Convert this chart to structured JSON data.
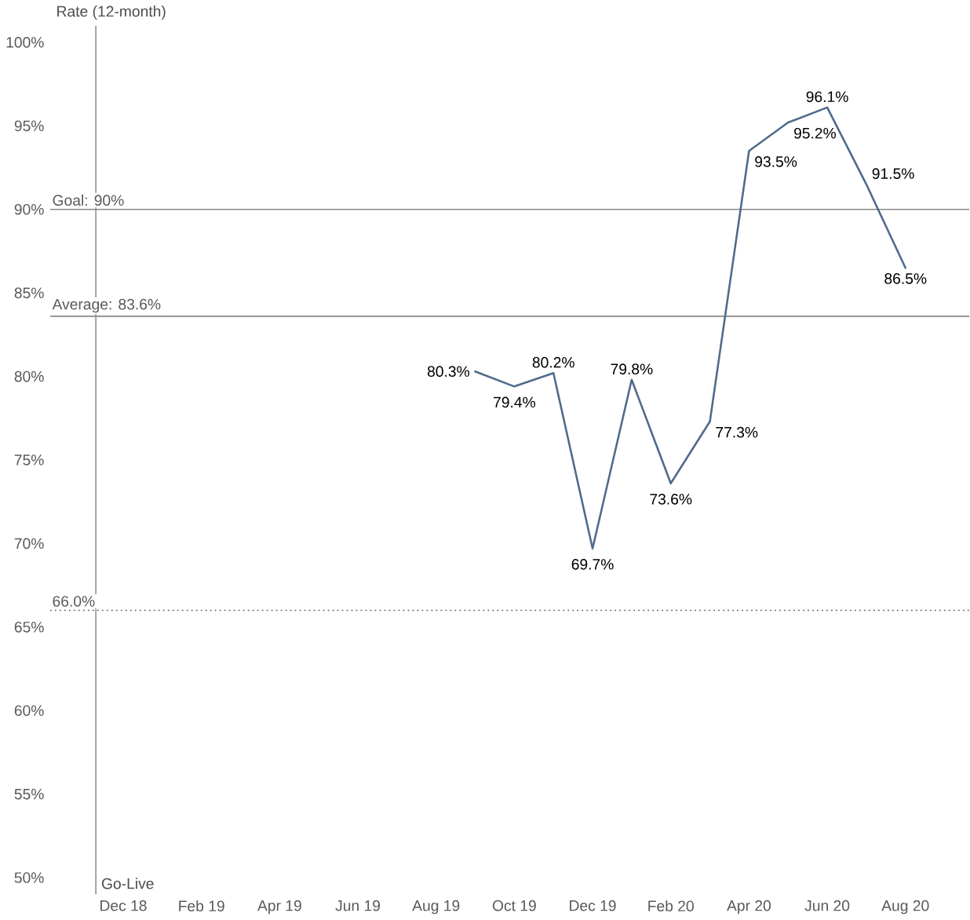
{
  "chart_data": {
    "type": "line",
    "ylabel": "Rate (12-month)",
    "x": [
      "2019-09",
      "2019-10",
      "2019-11",
      "2019-12",
      "2020-01",
      "2020-02",
      "2020-03",
      "2020-04",
      "2020-05",
      "2020-06",
      "2020-07",
      "2020-08"
    ],
    "series": [
      {
        "color": "#4e6b8c",
        "values": [
          80.3,
          79.4,
          80.2,
          69.7,
          79.8,
          73.6,
          77.3,
          93.5,
          95.2,
          96.1,
          91.5,
          86.5
        ],
        "value_labels": [
          "80.3%",
          "79.4%",
          "80.2%",
          "69.7%",
          "79.8%",
          "73.6%",
          "77.3%",
          "93.5%",
          "95.2%",
          "96.1%",
          "91.5%",
          "86.5%"
        ]
      }
    ],
    "xlim": [
      "2018-10-05",
      "2020-09-20"
    ],
    "xticks": [
      {
        "value": "2018-12",
        "label": "Dec 18"
      },
      {
        "value": "2019-02",
        "label": "Feb 19"
      },
      {
        "value": "2019-04",
        "label": "Apr 19"
      },
      {
        "value": "2019-06",
        "label": "Jun 19"
      },
      {
        "value": "2019-08",
        "label": "Aug 19"
      },
      {
        "value": "2019-10",
        "label": "Oct 19"
      },
      {
        "value": "2019-12",
        "label": "Dec 19"
      },
      {
        "value": "2020-02",
        "label": "Feb 20"
      },
      {
        "value": "2020-04",
        "label": "Apr 20"
      },
      {
        "value": "2020-06",
        "label": "Jun 20"
      },
      {
        "value": "2020-08",
        "label": "Aug 20"
      }
    ],
    "ylim": [
      49,
      101
    ],
    "yticks": [
      {
        "value": 50,
        "label": "50%"
      },
      {
        "value": 55,
        "label": "55%"
      },
      {
        "value": 60,
        "label": "60%"
      },
      {
        "value": 65,
        "label": "65%"
      },
      {
        "value": 70,
        "label": "70%"
      },
      {
        "value": 75,
        "label": "75%"
      },
      {
        "value": 80,
        "label": "80%"
      },
      {
        "value": 85,
        "label": "85%"
      },
      {
        "value": 90,
        "label": "90%"
      },
      {
        "value": 95,
        "label": "95%"
      },
      {
        "value": 100,
        "label": "100%"
      }
    ],
    "ref_lines": [
      {
        "axis": "y",
        "value": 90,
        "label": "Goal: 90%",
        "color": "#888888",
        "line_style": "solid"
      },
      {
        "axis": "y",
        "value": 83.6,
        "label": "Average: 83.6%",
        "color": "#888888",
        "line_style": "solid"
      },
      {
        "axis": "y",
        "value": 66,
        "label": "66.0%",
        "color": "#555555",
        "line_style": "dotted"
      },
      {
        "axis": "x",
        "value": "2018-11-10",
        "label": "Go-Live",
        "color": "#999999",
        "line_style": "solid"
      }
    ],
    "marker": "none",
    "line_style": "solid"
  }
}
